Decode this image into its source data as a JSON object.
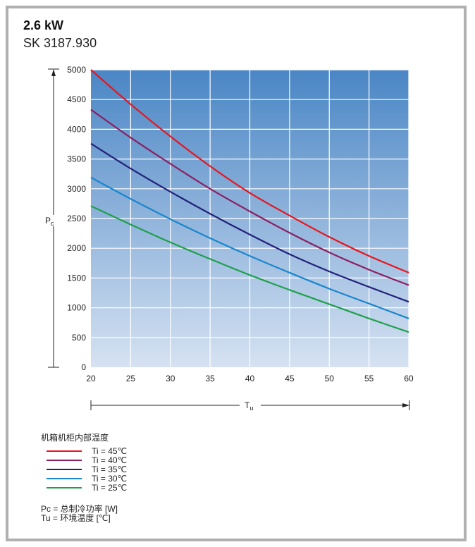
{
  "header": {
    "title": "2.6 kW",
    "subtitle": "SK 3187.930"
  },
  "chart_data": {
    "type": "line",
    "xlabel": "Tu",
    "ylabel": "Pc",
    "xlim": [
      20,
      60
    ],
    "ylim": [
      0,
      5000
    ],
    "x_ticks": [
      20,
      25,
      30,
      35,
      40,
      45,
      50,
      55,
      60
    ],
    "y_ticks": [
      0,
      500,
      1000,
      1500,
      2000,
      2500,
      3000,
      3500,
      4000,
      4500,
      5000
    ],
    "grid": true,
    "series": [
      {
        "name": "Ti = 45℃",
        "color": "#e8141e",
        "x": [
          20,
          25,
          30,
          35,
          40,
          45,
          50,
          55,
          60
        ],
        "y": [
          5000,
          4420,
          3880,
          3380,
          2930,
          2550,
          2190,
          1870,
          1590
        ]
      },
      {
        "name": "Ti = 40℃",
        "color": "#8c1f62",
        "x": [
          20,
          25,
          30,
          35,
          40,
          45,
          50,
          55,
          60
        ],
        "y": [
          4330,
          3860,
          3420,
          3000,
          2620,
          2260,
          1930,
          1640,
          1380
        ]
      },
      {
        "name": "Ti = 35℃",
        "color": "#23217a",
        "x": [
          20,
          25,
          30,
          35,
          40,
          45,
          50,
          55,
          60
        ],
        "y": [
          3760,
          3340,
          2950,
          2580,
          2230,
          1900,
          1610,
          1350,
          1100
        ]
      },
      {
        "name": "Ti = 30℃",
        "color": "#1a86cc",
        "x": [
          20,
          25,
          30,
          35,
          40,
          45,
          50,
          55,
          60
        ],
        "y": [
          3190,
          2830,
          2490,
          2170,
          1870,
          1590,
          1320,
          1070,
          820
        ]
      },
      {
        "name": "Ti = 25℃",
        "color": "#1ea04a",
        "x": [
          20,
          25,
          30,
          35,
          40,
          45,
          50,
          55,
          60
        ],
        "y": [
          2710,
          2400,
          2100,
          1820,
          1550,
          1300,
          1060,
          820,
          590
        ]
      }
    ]
  },
  "legend": {
    "heading": "机箱机柜内部温度"
  },
  "notes": {
    "pc": "Pc = 总制冷功率 [W]",
    "tu": "Tu = 环境温度 [℃]"
  }
}
